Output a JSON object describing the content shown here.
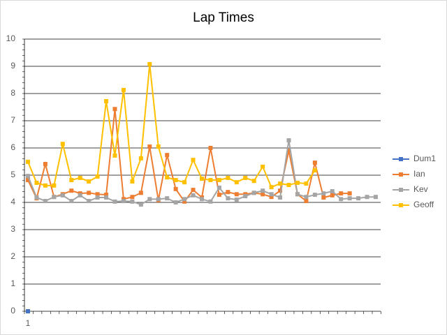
{
  "chart_data": {
    "type": "line",
    "title": "Lap Times",
    "categories": [
      "1",
      null,
      null,
      null,
      null,
      null,
      null,
      null,
      null,
      null,
      null,
      null,
      null,
      null,
      null,
      null,
      null,
      null,
      null,
      null,
      null,
      null,
      null,
      null,
      null,
      null,
      null,
      null,
      null,
      null,
      null,
      null,
      null,
      null,
      null,
      null,
      null,
      null,
      null,
      null,
      null
    ],
    "series": [
      {
        "name": "Dum1",
        "color": "#4472c4",
        "values": [
          0,
          null,
          null,
          null,
          null,
          null,
          null,
          null,
          null,
          null,
          null,
          null,
          null,
          null,
          null,
          null,
          null,
          null,
          null,
          null,
          null,
          null,
          null,
          null,
          null,
          null,
          null,
          null,
          null,
          null,
          null,
          null,
          null,
          null,
          null,
          null,
          null,
          null,
          null,
          null,
          null
        ]
      },
      {
        "name": "Ian",
        "color": "#ed7d31",
        "values": [
          4.82,
          4.15,
          5.41,
          4.2,
          4.3,
          4.43,
          4.33,
          4.35,
          4.3,
          4.28,
          7.43,
          4.12,
          4.2,
          4.35,
          6.05,
          4.08,
          5.74,
          4.49,
          4.03,
          4.46,
          4.18,
          6.0,
          4.28,
          4.38,
          4.3,
          4.3,
          4.35,
          4.3,
          4.2,
          4.43,
          5.9,
          4.3,
          4.05,
          5.46,
          4.18,
          4.26,
          4.33,
          4.33,
          null,
          null,
          null
        ]
      },
      {
        "name": "Kev",
        "color": "#a5a5a5",
        "values": [
          4.97,
          4.18,
          4.05,
          4.2,
          4.26,
          4.05,
          4.26,
          4.05,
          4.18,
          4.18,
          4.03,
          4.05,
          4.03,
          3.92,
          4.12,
          4.12,
          4.15,
          4.0,
          4.12,
          4.26,
          4.12,
          4.03,
          4.54,
          4.15,
          4.1,
          4.23,
          4.35,
          4.43,
          4.3,
          4.18,
          6.28,
          4.3,
          4.2,
          4.28,
          4.33,
          4.41,
          4.12,
          4.15,
          4.15,
          4.2,
          4.2
        ]
      },
      {
        "name": "Geoff",
        "color": "#ffc000",
        "values": [
          5.49,
          4.72,
          4.62,
          4.62,
          6.15,
          4.82,
          4.9,
          4.77,
          4.95,
          7.72,
          5.72,
          8.13,
          4.77,
          5.62,
          9.08,
          6.05,
          4.92,
          4.82,
          4.74,
          5.56,
          4.87,
          4.82,
          4.82,
          4.9,
          4.74,
          4.9,
          4.79,
          5.31,
          4.56,
          4.69,
          4.64,
          4.72,
          4.69,
          5.18,
          null,
          null,
          null,
          null,
          null,
          null,
          null
        ]
      }
    ],
    "ylim": [
      0,
      10
    ],
    "yticks": [
      0,
      1,
      2,
      3,
      4,
      5,
      6,
      7,
      8,
      9,
      10
    ],
    "grid": true,
    "legend": "right"
  }
}
